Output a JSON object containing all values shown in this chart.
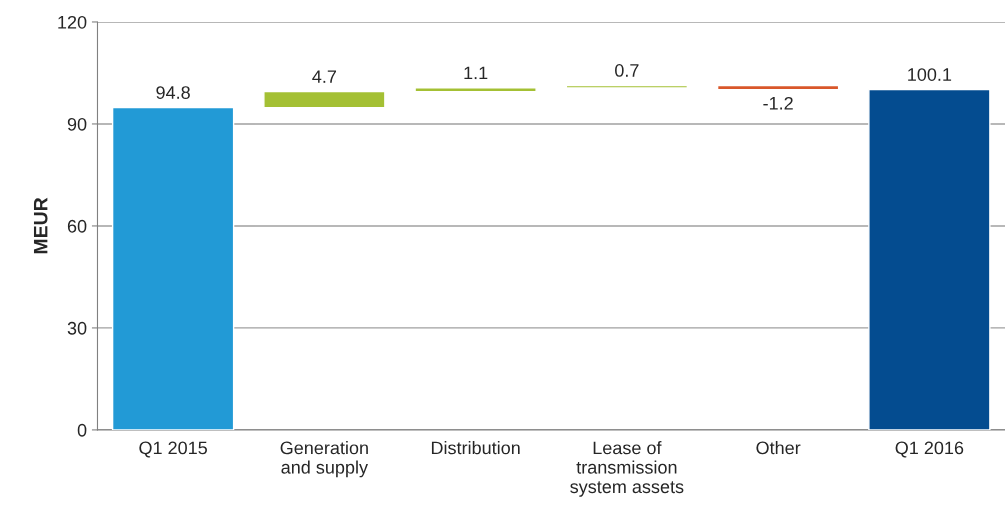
{
  "chart_data": {
    "type": "bar",
    "ylabel": "MEUR",
    "categories": [
      "Q1 2015",
      "Generation\nand supply",
      "Distribution",
      "Lease of\ntransmission\nsystem assets",
      "Other",
      "Q1 2016"
    ],
    "values": [
      94.8,
      4.7,
      1.1,
      0.7,
      -1.2,
      100.1
    ],
    "base": [
      0,
      94.8,
      99.5,
      100.6,
      101.3,
      0
    ],
    "colors": [
      "#229ad6",
      "#a4c034",
      "#a4c034",
      "#a4c034",
      "#d9572a",
      "#044c90"
    ],
    "ylim": [
      0,
      120
    ],
    "yticks": [
      0,
      30,
      60,
      90,
      120
    ],
    "grid": "y",
    "data_labels": true
  }
}
